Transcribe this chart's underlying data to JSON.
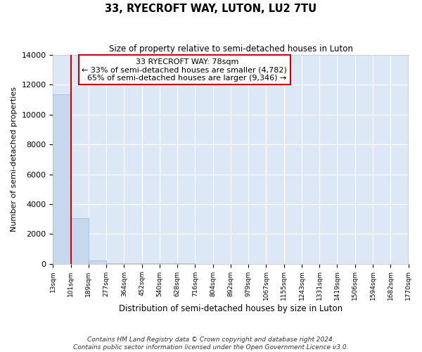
{
  "title": "33, RYECROFT WAY, LUTON, LU2 7TU",
  "subtitle": "Size of property relative to semi-detached houses in Luton",
  "xlabel": "Distribution of semi-detached houses by size in Luton",
  "ylabel": "Number of semi-detached properties",
  "footer_line1": "Contains HM Land Registry data © Crown copyright and database right 2024.",
  "footer_line2": "Contains public sector information licensed under the Open Government Licence v3.0.",
  "property_size_bin": 1,
  "property_label": "33 RYECROFT WAY: 78sqm",
  "smaller_pct": "33%",
  "smaller_count": "4,782",
  "larger_pct": "65%",
  "larger_count": "9,346",
  "bar_color": "#c5d8ee",
  "bar_edge_color": "#99b9d9",
  "highlight_color": "#cc0000",
  "annotation_box_color": "#ffffff",
  "annotation_box_edge": "#cc0000",
  "background_color": "#dce8f5",
  "grid_color": "#ffffff",
  "ylim": [
    0,
    14000
  ],
  "yticks": [
    0,
    2000,
    4000,
    6000,
    8000,
    10000,
    12000,
    14000
  ],
  "bin_labels": [
    "13sqm",
    "101sqm",
    "189sqm",
    "277sqm",
    "364sqm",
    "452sqm",
    "540sqm",
    "628sqm",
    "716sqm",
    "804sqm",
    "892sqm",
    "979sqm",
    "1067sqm",
    "1155sqm",
    "1243sqm",
    "1331sqm",
    "1419sqm",
    "1506sqm",
    "1594sqm",
    "1682sqm",
    "1770sqm"
  ],
  "bar_heights": [
    11350,
    3050,
    200,
    50,
    20,
    10,
    5,
    5,
    3,
    2,
    2,
    1,
    1,
    1,
    0,
    0,
    0,
    0,
    0,
    0
  ],
  "n_bins": 20
}
